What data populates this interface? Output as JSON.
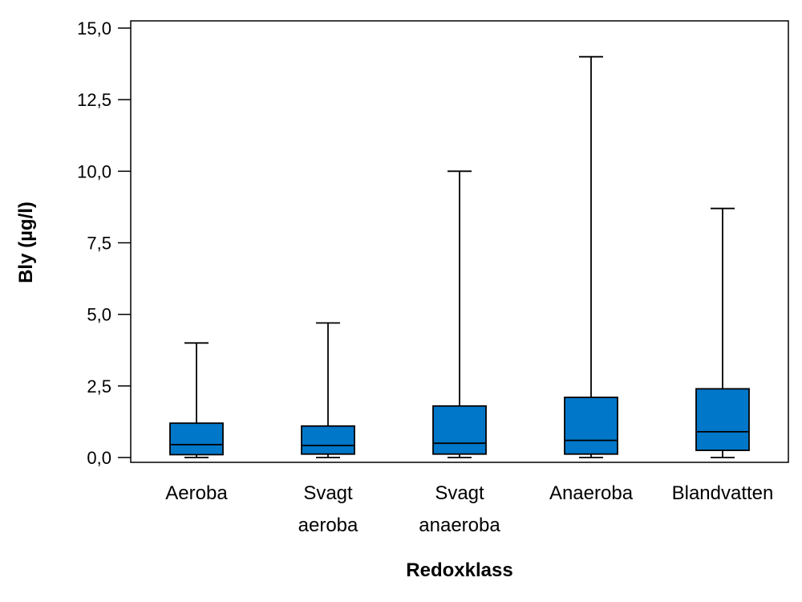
{
  "chart_data": {
    "type": "boxplot",
    "title": "",
    "xlabel": "Redoxklass",
    "ylabel": "Bly (µg/l)",
    "ylim": [
      0,
      15
    ],
    "yticks": [
      "0,0",
      "2,5",
      "5,0",
      "7,5",
      "10,0",
      "12,5",
      "15,0"
    ],
    "ytick_values": [
      0,
      2.5,
      5,
      7.5,
      10,
      12.5,
      15
    ],
    "box_color": "#0077C8",
    "categories": [
      {
        "label_lines": [
          "Aeroba"
        ],
        "whisker_low": 0.0,
        "q1": 0.1,
        "median": 0.45,
        "q3": 1.2,
        "whisker_high": 4.0
      },
      {
        "label_lines": [
          "Svagt",
          "aeroba"
        ],
        "whisker_low": 0.0,
        "q1": 0.12,
        "median": 0.42,
        "q3": 1.1,
        "whisker_high": 4.7
      },
      {
        "label_lines": [
          "Svagt",
          "anaeroba"
        ],
        "whisker_low": 0.0,
        "q1": 0.12,
        "median": 0.5,
        "q3": 1.8,
        "whisker_high": 10.0
      },
      {
        "label_lines": [
          "Anaeroba"
        ],
        "whisker_low": 0.0,
        "q1": 0.12,
        "median": 0.6,
        "q3": 2.1,
        "whisker_high": 14.0
      },
      {
        "label_lines": [
          "Blandvatten"
        ],
        "whisker_low": 0.0,
        "q1": 0.25,
        "median": 0.9,
        "q3": 2.4,
        "whisker_high": 8.7
      }
    ]
  }
}
